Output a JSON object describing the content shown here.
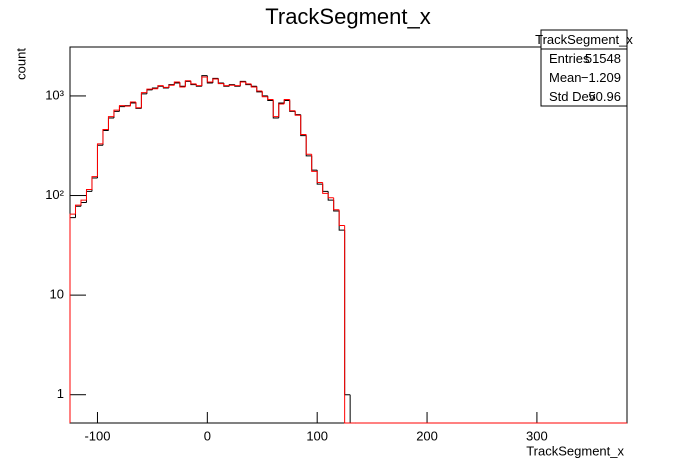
{
  "chart_data": {
    "type": "histogram",
    "title": "TrackSegment_x",
    "x_label": "TrackSegment_x",
    "y_label": "count",
    "log_y": true,
    "bins": [
      -125,
      -120,
      -115,
      -110,
      -105,
      -100,
      -95,
      -90,
      -85,
      -80,
      -75,
      -70,
      -65,
      -60,
      -55,
      -50,
      -45,
      -40,
      -35,
      -30,
      -25,
      -20,
      -15,
      -10,
      -5,
      0,
      5,
      10,
      15,
      20,
      25,
      30,
      35,
      40,
      45,
      50,
      55,
      60,
      65,
      70,
      75,
      80,
      85,
      90,
      95,
      100,
      105,
      110,
      115,
      120,
      125,
      130,
      135
    ],
    "series": [
      {
        "name": "TrackSegment_x",
        "color": "#000000",
        "values": [
          60,
          78,
          85,
          110,
          150,
          320,
          450,
          600,
          700,
          780,
          800,
          850,
          750,
          1050,
          1150,
          1200,
          1250,
          1200,
          1300,
          1350,
          1250,
          1400,
          1300,
          1250,
          1600,
          1350,
          1500,
          1350,
          1250,
          1300,
          1250,
          1400,
          1300,
          1250,
          1100,
          1000,
          900,
          600,
          850,
          900,
          700,
          650,
          400,
          250,
          180,
          130,
          110,
          90,
          70,
          45,
          1,
          0
        ]
      },
      {
        "color": "#ff0000",
        "values": [
          65,
          80,
          90,
          115,
          155,
          330,
          460,
          620,
          720,
          800,
          790,
          870,
          760,
          1080,
          1170,
          1180,
          1270,
          1220,
          1280,
          1380,
          1230,
          1420,
          1320,
          1270,
          1550,
          1380,
          1480,
          1330,
          1270,
          1280,
          1270,
          1380,
          1320,
          1230,
          1120,
          980,
          920,
          620,
          830,
          920,
          710,
          640,
          410,
          260,
          175,
          135,
          105,
          95,
          72,
          50,
          0,
          0
        ]
      }
    ],
    "xlim": [
      -125,
      382
    ],
    "xticks": [
      -100,
      0,
      100,
      200,
      300
    ],
    "ylim": [
      0.52,
      3100
    ],
    "yticks": [
      1,
      10,
      {
        "value": 100,
        "label": "10²"
      },
      {
        "value": 1000,
        "label": "10³"
      }
    ],
    "stats_box": {
      "title": "TrackSegment_x",
      "rows": [
        [
          "Entries",
          "51548"
        ],
        [
          "Mean",
          "−1.209"
        ],
        [
          "Std Dev",
          "50.96"
        ]
      ]
    }
  }
}
